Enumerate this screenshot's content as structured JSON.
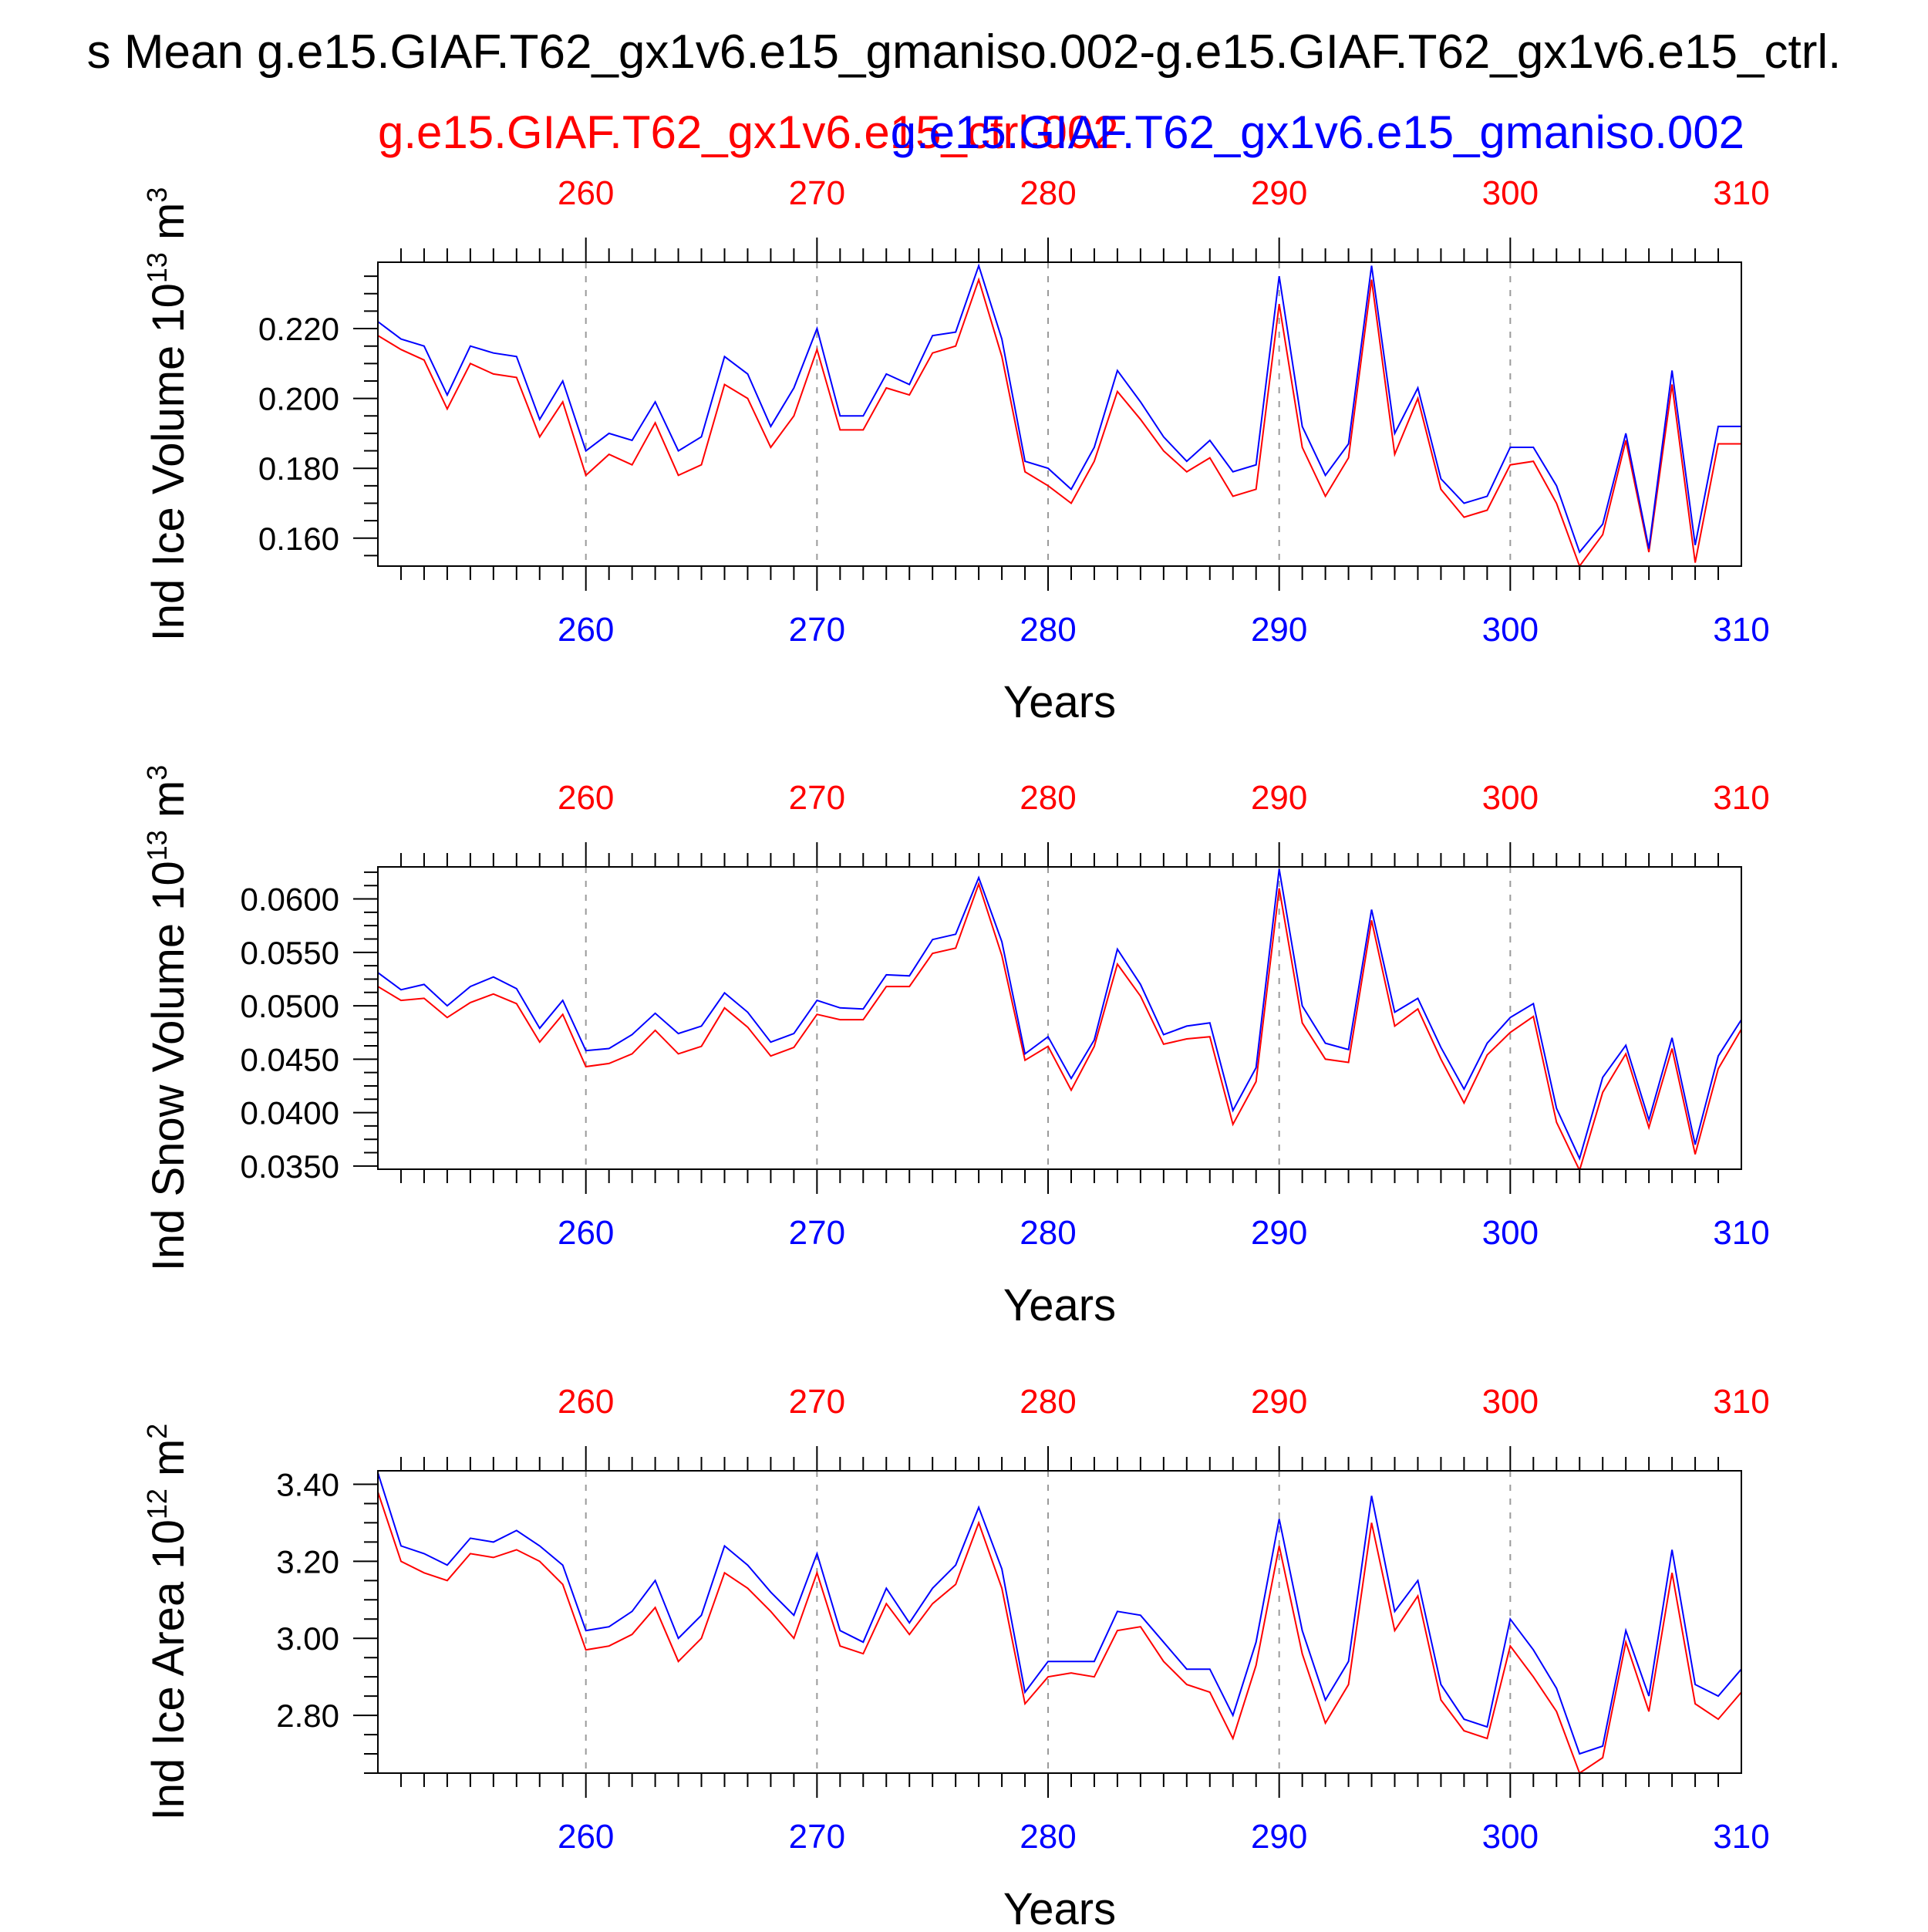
{
  "figure": {
    "title": "s Mean g.e15.GIAF.T62_gx1v6.e15_gmaniso.002-g.e15.GIAF.T62_gx1v6.e15_ctrl.",
    "legend_red": "g.e15.GIAF.T62_gx1v6.e15_ctrl.002",
    "legend_blue": "g.e15.GIAF.T62_gx1v6.e15_gmaniso.002",
    "colors": {
      "ctrl": "#ff0000",
      "gmaniso": "#0000ff",
      "axis": "#000000",
      "grid": "#9a9a9a"
    }
  },
  "chart_data": [
    {
      "type": "line",
      "ylabel": "Ind Ice Volume 10",
      "ylabel_exp": "13",
      "ylabel_unit": " m",
      "ylabel_unit_exp": "3",
      "xlabel": "Years",
      "xlim": [
        251,
        310
      ],
      "ylim": [
        0.152,
        0.239
      ],
      "xticks": [
        260,
        270,
        280,
        290,
        300,
        310
      ],
      "yticks": [
        0.16,
        0.18,
        0.2,
        0.22
      ],
      "ytick_labels": [
        "0.160",
        "0.180",
        "0.200",
        "0.220"
      ],
      "x": [
        251,
        252,
        253,
        254,
        255,
        256,
        257,
        258,
        259,
        260,
        261,
        262,
        263,
        264,
        265,
        266,
        267,
        268,
        269,
        270,
        271,
        272,
        273,
        274,
        275,
        276,
        277,
        278,
        279,
        280,
        281,
        282,
        283,
        284,
        285,
        286,
        287,
        288,
        289,
        290,
        291,
        292,
        293,
        294,
        295,
        296,
        297,
        298,
        299,
        300,
        301,
        302,
        303,
        304,
        305,
        306,
        307,
        308,
        309,
        310
      ],
      "series": [
        {
          "name": "g.e15.GIAF.T62_gx1v6.e15_ctrl.002",
          "values": [
            0.218,
            0.214,
            0.211,
            0.197,
            0.21,
            0.207,
            0.206,
            0.189,
            0.199,
            0.178,
            0.184,
            0.181,
            0.193,
            0.178,
            0.181,
            0.204,
            0.2,
            0.186,
            0.195,
            0.214,
            0.191,
            0.191,
            0.203,
            0.201,
            0.213,
            0.215,
            0.234,
            0.212,
            0.179,
            0.175,
            0.17,
            0.182,
            0.202,
            0.194,
            0.185,
            0.179,
            0.183,
            0.172,
            0.174,
            0.227,
            0.186,
            0.172,
            0.183,
            0.234,
            0.184,
            0.2,
            0.174,
            0.166,
            0.168,
            0.181,
            0.182,
            0.17,
            0.152,
            0.161,
            0.188,
            0.156,
            0.204,
            0.153,
            0.187,
            0.187
          ]
        },
        {
          "name": "g.e15.GIAF.T62_gx1v6.e15_gmaniso.002",
          "values": [
            0.222,
            0.217,
            0.215,
            0.201,
            0.215,
            0.213,
            0.212,
            0.194,
            0.205,
            0.185,
            0.19,
            0.188,
            0.199,
            0.185,
            0.189,
            0.212,
            0.207,
            0.192,
            0.203,
            0.22,
            0.195,
            0.195,
            0.207,
            0.204,
            0.218,
            0.219,
            0.238,
            0.217,
            0.182,
            0.18,
            0.174,
            0.186,
            0.208,
            0.199,
            0.189,
            0.182,
            0.188,
            0.179,
            0.181,
            0.235,
            0.192,
            0.178,
            0.187,
            0.238,
            0.19,
            0.203,
            0.177,
            0.17,
            0.172,
            0.186,
            0.186,
            0.175,
            0.156,
            0.164,
            0.19,
            0.157,
            0.208,
            0.158,
            0.192,
            0.192
          ]
        }
      ]
    },
    {
      "type": "line",
      "ylabel": "Ind Snow Volume 10",
      "ylabel_exp": "13",
      "ylabel_unit": " m",
      "ylabel_unit_exp": "3",
      "xlabel": "Years",
      "xlim": [
        251,
        310
      ],
      "ylim": [
        0.0347,
        0.063
      ],
      "xticks": [
        260,
        270,
        280,
        290,
        300,
        310
      ],
      "yticks": [
        0.035,
        0.04,
        0.045,
        0.05,
        0.055,
        0.06
      ],
      "ytick_labels": [
        "0.0350",
        "0.0400",
        "0.0450",
        "0.0500",
        "0.0550",
        "0.0600"
      ],
      "x": [
        251,
        252,
        253,
        254,
        255,
        256,
        257,
        258,
        259,
        260,
        261,
        262,
        263,
        264,
        265,
        266,
        267,
        268,
        269,
        270,
        271,
        272,
        273,
        274,
        275,
        276,
        277,
        278,
        279,
        280,
        281,
        282,
        283,
        284,
        285,
        286,
        287,
        288,
        289,
        290,
        291,
        292,
        293,
        294,
        295,
        296,
        297,
        298,
        299,
        300,
        301,
        302,
        303,
        304,
        305,
        306,
        307,
        308,
        309,
        310
      ],
      "series": [
        {
          "name": "g.e15.GIAF.T62_gx1v6.e15_ctrl.002",
          "values": [
            0.0518,
            0.0505,
            0.0507,
            0.0489,
            0.0503,
            0.0511,
            0.0502,
            0.0466,
            0.0492,
            0.0443,
            0.0446,
            0.0455,
            0.0477,
            0.0455,
            0.0462,
            0.0498,
            0.048,
            0.0453,
            0.0461,
            0.0492,
            0.0487,
            0.0487,
            0.0518,
            0.0518,
            0.0549,
            0.0554,
            0.0614,
            0.0547,
            0.0449,
            0.0462,
            0.0421,
            0.0462,
            0.0539,
            0.0509,
            0.0464,
            0.0469,
            0.0471,
            0.0389,
            0.0429,
            0.061,
            0.0484,
            0.045,
            0.0447,
            0.058,
            0.0481,
            0.0497,
            0.045,
            0.0409,
            0.0454,
            0.0475,
            0.049,
            0.0391,
            0.0346,
            0.0419,
            0.0455,
            0.0386,
            0.046,
            0.0361,
            0.0441,
            0.0478
          ]
        },
        {
          "name": "g.e15.GIAF.T62_gx1v6.e15_gmaniso.002",
          "values": [
            0.0531,
            0.0515,
            0.052,
            0.05,
            0.0518,
            0.0527,
            0.0516,
            0.0479,
            0.0505,
            0.0458,
            0.046,
            0.0473,
            0.0493,
            0.0474,
            0.0481,
            0.0512,
            0.0494,
            0.0466,
            0.0474,
            0.0505,
            0.0498,
            0.0497,
            0.0529,
            0.0528,
            0.0562,
            0.0567,
            0.062,
            0.056,
            0.0455,
            0.0471,
            0.0432,
            0.0468,
            0.0553,
            0.052,
            0.0473,
            0.0481,
            0.0484,
            0.0402,
            0.0442,
            0.0628,
            0.05,
            0.0465,
            0.0459,
            0.059,
            0.0494,
            0.0507,
            0.0461,
            0.0422,
            0.0465,
            0.0489,
            0.0502,
            0.0404,
            0.0357,
            0.0433,
            0.0463,
            0.0393,
            0.047,
            0.037,
            0.0453,
            0.0487
          ]
        }
      ]
    },
    {
      "type": "line",
      "ylabel": "Ind Ice Area 10",
      "ylabel_exp": "12",
      "ylabel_unit": " m",
      "ylabel_unit_exp": "2",
      "xlabel": "Years",
      "xlim": [
        251,
        310
      ],
      "ylim": [
        2.65,
        3.435
      ],
      "xticks": [
        260,
        270,
        280,
        290,
        300,
        310
      ],
      "yticks": [
        2.8,
        3.0,
        3.2,
        3.4
      ],
      "ytick_labels": [
        "2.80",
        "3.00",
        "3.20",
        "3.40"
      ],
      "x": [
        251,
        252,
        253,
        254,
        255,
        256,
        257,
        258,
        259,
        260,
        261,
        262,
        263,
        264,
        265,
        266,
        267,
        268,
        269,
        270,
        271,
        272,
        273,
        274,
        275,
        276,
        277,
        278,
        279,
        280,
        281,
        282,
        283,
        284,
        285,
        286,
        287,
        288,
        289,
        290,
        291,
        292,
        293,
        294,
        295,
        296,
        297,
        298,
        299,
        300,
        301,
        302,
        303,
        304,
        305,
        306,
        307,
        308,
        309,
        310
      ],
      "series": [
        {
          "name": "g.e15.GIAF.T62_gx1v6.e15_ctrl.002",
          "values": [
            3.38,
            3.2,
            3.17,
            3.15,
            3.22,
            3.21,
            3.23,
            3.2,
            3.14,
            2.97,
            2.98,
            3.01,
            3.08,
            2.94,
            3.0,
            3.17,
            3.13,
            3.07,
            3.0,
            3.17,
            2.98,
            2.96,
            3.09,
            3.01,
            3.09,
            3.14,
            3.3,
            3.13,
            2.83,
            2.9,
            2.91,
            2.9,
            3.02,
            3.03,
            2.94,
            2.88,
            2.86,
            2.74,
            2.93,
            3.24,
            2.96,
            2.78,
            2.88,
            3.3,
            3.02,
            3.11,
            2.84,
            2.76,
            2.74,
            2.98,
            2.9,
            2.81,
            2.65,
            2.69,
            2.99,
            2.81,
            3.17,
            2.83,
            2.79,
            2.86
          ]
        },
        {
          "name": "g.e15.GIAF.T62_gx1v6.e15_gmaniso.002",
          "values": [
            3.43,
            3.24,
            3.22,
            3.19,
            3.26,
            3.25,
            3.28,
            3.24,
            3.19,
            3.02,
            3.03,
            3.07,
            3.15,
            3.0,
            3.06,
            3.24,
            3.19,
            3.12,
            3.06,
            3.22,
            3.02,
            2.99,
            3.13,
            3.04,
            3.13,
            3.19,
            3.34,
            3.18,
            2.86,
            2.94,
            2.94,
            2.94,
            3.07,
            3.06,
            2.99,
            2.92,
            2.92,
            2.8,
            2.99,
            3.31,
            3.02,
            2.84,
            2.94,
            3.37,
            3.07,
            3.15,
            2.88,
            2.79,
            2.77,
            3.05,
            2.97,
            2.87,
            2.7,
            2.72,
            3.02,
            2.85,
            3.23,
            2.88,
            2.85,
            2.92
          ]
        }
      ]
    }
  ]
}
